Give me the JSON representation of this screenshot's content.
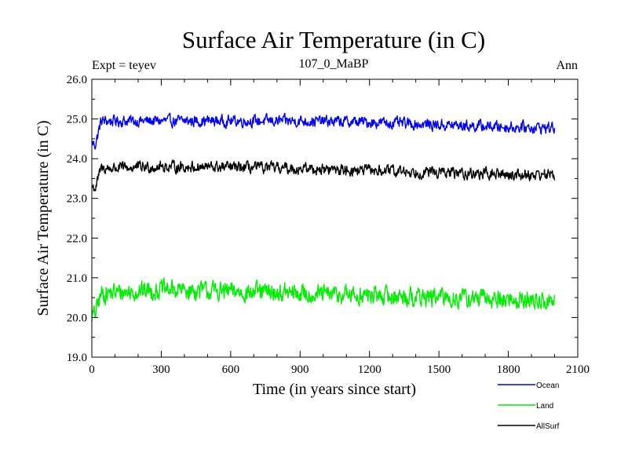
{
  "chart_data": {
    "type": "line",
    "title": "Surface Air Temperature (in C)",
    "subtitle_left": "Expt = teyev",
    "subtitle_center": "107_0_MaBP",
    "subtitle_right": "Ann",
    "xlabel": "Time (in years since start)",
    "ylabel": "Surface Air Temperature (in C)",
    "xlim": [
      0,
      2100
    ],
    "ylim": [
      19.0,
      26.0
    ],
    "x_ticks": [
      "0",
      "300",
      "600",
      "900",
      "1200",
      "1500",
      "1800",
      "2100"
    ],
    "y_ticks": [
      "19.0",
      "20.0",
      "21.0",
      "22.0",
      "23.0",
      "24.0",
      "25.0",
      "26.0"
    ],
    "x_tick_values": [
      0,
      300,
      600,
      900,
      1200,
      1500,
      1800,
      2100
    ],
    "y_tick_values": [
      19,
      20,
      21,
      22,
      23,
      24,
      25,
      26
    ],
    "x_end": 2000,
    "series": [
      {
        "name": "Ocean",
        "color": "#0000ff",
        "noise": 0.12,
        "anchors": [
          [
            0,
            24.4
          ],
          [
            15,
            24.35
          ],
          [
            40,
            24.95
          ],
          [
            300,
            24.95
          ],
          [
            600,
            24.95
          ],
          [
            900,
            24.95
          ],
          [
            1200,
            24.92
          ],
          [
            1500,
            24.85
          ],
          [
            1800,
            24.8
          ],
          [
            2000,
            24.78
          ]
        ]
      },
      {
        "name": "Land",
        "color": "#00ee00",
        "noise": 0.2,
        "anchors": [
          [
            0,
            20.05
          ],
          [
            15,
            20.1
          ],
          [
            40,
            20.6
          ],
          [
            300,
            20.7
          ],
          [
            600,
            20.65
          ],
          [
            900,
            20.6
          ],
          [
            1200,
            20.55
          ],
          [
            1500,
            20.5
          ],
          [
            1800,
            20.45
          ],
          [
            2000,
            20.4
          ]
        ]
      },
      {
        "name": "AllSurf",
        "color": "#000000",
        "noise": 0.12,
        "anchors": [
          [
            0,
            23.3
          ],
          [
            15,
            23.25
          ],
          [
            40,
            23.75
          ],
          [
            300,
            23.8
          ],
          [
            600,
            23.78
          ],
          [
            900,
            23.75
          ],
          [
            1200,
            23.7
          ],
          [
            1500,
            23.65
          ],
          [
            1800,
            23.6
          ],
          [
            2000,
            23.6
          ]
        ]
      }
    ]
  }
}
